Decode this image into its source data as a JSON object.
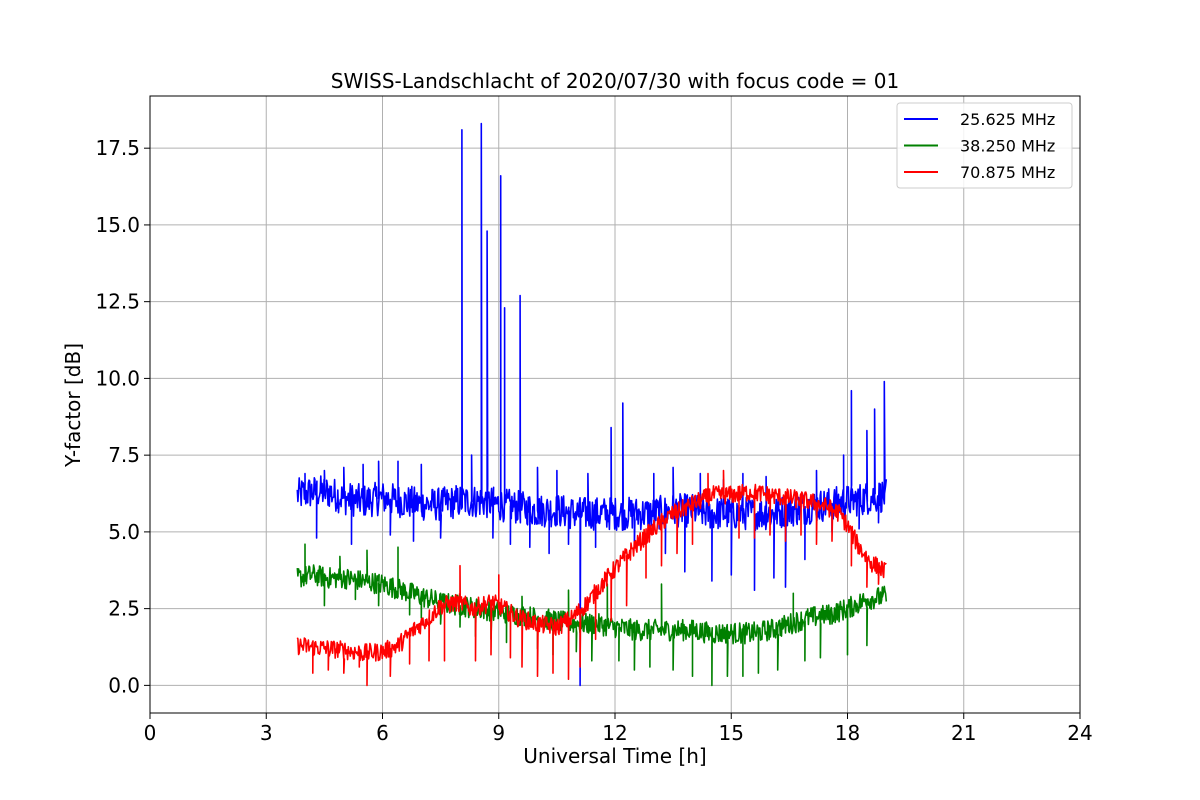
{
  "chart_data": {
    "type": "line",
    "title": "SWISS-Landschlacht of 2020/07/30 with focus code = 01",
    "xlabel": "Universal Time [h]",
    "ylabel": "Y-factor [dB]",
    "xlim": [
      0,
      24
    ],
    "ylim": [
      -0.9,
      19.2
    ],
    "xticks": [
      0,
      3,
      6,
      9,
      12,
      15,
      18,
      21,
      24
    ],
    "xtick_labels": [
      "0",
      "3",
      "6",
      "9",
      "12",
      "15",
      "18",
      "21",
      "24"
    ],
    "yticks": [
      0,
      2.5,
      5,
      7.5,
      10,
      12.5,
      15,
      17.5
    ],
    "ytick_labels": [
      "0.0",
      "2.5",
      "5.0",
      "7.5",
      "10.0",
      "12.5",
      "15.0",
      "17.5"
    ],
    "grid": true,
    "legend_position": "top-right",
    "series": [
      {
        "name": "25.625 MHz",
        "color": "#0000ff",
        "points": [
          [
            3.8,
            6.2
          ],
          [
            4.2,
            6.3
          ],
          [
            4.6,
            6.3
          ],
          [
            5.0,
            6.1
          ],
          [
            5.5,
            6.0
          ],
          [
            6.0,
            6.1
          ],
          [
            6.5,
            6.0
          ],
          [
            7.0,
            5.9
          ],
          [
            7.5,
            5.9
          ],
          [
            8.0,
            6.0
          ],
          [
            8.3,
            6.0
          ],
          [
            8.6,
            6.0
          ],
          [
            9.0,
            5.9
          ],
          [
            9.5,
            5.8
          ],
          [
            10.0,
            5.7
          ],
          [
            10.5,
            5.7
          ],
          [
            11.0,
            5.6
          ],
          [
            11.5,
            5.6
          ],
          [
            12.0,
            5.6
          ],
          [
            12.5,
            5.6
          ],
          [
            13.0,
            5.6
          ],
          [
            13.5,
            5.7
          ],
          [
            14.0,
            5.7
          ],
          [
            14.5,
            5.6
          ],
          [
            15.0,
            5.6
          ],
          [
            15.5,
            5.6
          ],
          [
            16.0,
            5.6
          ],
          [
            16.5,
            5.7
          ],
          [
            17.0,
            5.8
          ],
          [
            17.5,
            5.9
          ],
          [
            18.0,
            6.0
          ],
          [
            18.5,
            6.1
          ],
          [
            19.0,
            6.2
          ]
        ],
        "spikes": [
          [
            4.0,
            6.9
          ],
          [
            4.3,
            4.8
          ],
          [
            4.5,
            7.0
          ],
          [
            5.0,
            7.1
          ],
          [
            5.2,
            4.6
          ],
          [
            5.5,
            7.2
          ],
          [
            5.9,
            7.3
          ],
          [
            6.2,
            4.9
          ],
          [
            6.4,
            7.3
          ],
          [
            6.8,
            4.7
          ],
          [
            7.0,
            7.2
          ],
          [
            7.5,
            4.8
          ],
          [
            7.9,
            6.5
          ],
          [
            8.05,
            18.1
          ],
          [
            8.3,
            7.5
          ],
          [
            8.55,
            18.3
          ],
          [
            8.7,
            14.8
          ],
          [
            8.85,
            4.8
          ],
          [
            9.05,
            16.6
          ],
          [
            9.15,
            12.3
          ],
          [
            9.3,
            4.6
          ],
          [
            9.55,
            12.7
          ],
          [
            9.8,
            4.5
          ],
          [
            10.0,
            7.1
          ],
          [
            10.3,
            4.3
          ],
          [
            10.5,
            7.0
          ],
          [
            10.8,
            4.6
          ],
          [
            11.1,
            0.0
          ],
          [
            11.3,
            6.9
          ],
          [
            11.5,
            4.5
          ],
          [
            11.9,
            8.4
          ],
          [
            12.2,
            9.2
          ],
          [
            12.5,
            4.6
          ],
          [
            13.0,
            6.9
          ],
          [
            13.3,
            4.3
          ],
          [
            13.5,
            7.1
          ],
          [
            13.8,
            3.7
          ],
          [
            14.2,
            6.9
          ],
          [
            14.5,
            3.4
          ],
          [
            14.8,
            6.7
          ],
          [
            15.0,
            3.6
          ],
          [
            15.3,
            6.9
          ],
          [
            15.6,
            3.1
          ],
          [
            15.9,
            6.8
          ],
          [
            16.1,
            3.5
          ],
          [
            16.4,
            3.2
          ],
          [
            16.7,
            5.7
          ],
          [
            16.9,
            4.1
          ],
          [
            17.2,
            7.0
          ],
          [
            17.6,
            5.0
          ],
          [
            17.9,
            7.5
          ],
          [
            18.1,
            9.6
          ],
          [
            18.3,
            5.1
          ],
          [
            18.5,
            8.3
          ],
          [
            18.7,
            9.0
          ],
          [
            18.8,
            5.3
          ],
          [
            18.95,
            9.9
          ]
        ]
      },
      {
        "name": "38.250 MHz",
        "color": "#008000",
        "points": [
          [
            3.8,
            3.5
          ],
          [
            4.2,
            3.6
          ],
          [
            4.6,
            3.5
          ],
          [
            5.0,
            3.5
          ],
          [
            5.5,
            3.4
          ],
          [
            6.0,
            3.3
          ],
          [
            6.5,
            3.1
          ],
          [
            7.0,
            2.9
          ],
          [
            7.5,
            2.7
          ],
          [
            8.0,
            2.6
          ],
          [
            8.5,
            2.5
          ],
          [
            9.0,
            2.4
          ],
          [
            9.5,
            2.3
          ],
          [
            10.0,
            2.2
          ],
          [
            10.5,
            2.1
          ],
          [
            11.0,
            2.0
          ],
          [
            11.5,
            2.0
          ],
          [
            12.0,
            1.9
          ],
          [
            12.5,
            1.8
          ],
          [
            13.0,
            1.8
          ],
          [
            13.5,
            1.8
          ],
          [
            14.0,
            1.8
          ],
          [
            14.5,
            1.7
          ],
          [
            15.0,
            1.7
          ],
          [
            15.5,
            1.7
          ],
          [
            16.0,
            1.8
          ],
          [
            16.5,
            2.0
          ],
          [
            17.0,
            2.2
          ],
          [
            17.5,
            2.3
          ],
          [
            18.0,
            2.5
          ],
          [
            18.5,
            2.8
          ],
          [
            19.0,
            2.9
          ]
        ],
        "spikes": [
          [
            4.0,
            4.6
          ],
          [
            4.5,
            2.6
          ],
          [
            4.9,
            4.2
          ],
          [
            5.3,
            2.8
          ],
          [
            5.6,
            4.4
          ],
          [
            5.9,
            2.6
          ],
          [
            6.4,
            4.5
          ],
          [
            6.7,
            2.3
          ],
          [
            7.0,
            2.2
          ],
          [
            7.5,
            2.0
          ],
          [
            8.0,
            1.9
          ],
          [
            8.4,
            1.6
          ],
          [
            8.8,
            1.5
          ],
          [
            9.2,
            1.4
          ],
          [
            9.6,
            2.9
          ],
          [
            10.0,
            1.2
          ],
          [
            10.4,
            1.0
          ],
          [
            10.8,
            3.1
          ],
          [
            11.0,
            1.1
          ],
          [
            11.4,
            0.8
          ],
          [
            11.8,
            3.3
          ],
          [
            12.1,
            0.8
          ],
          [
            12.5,
            0.5
          ],
          [
            12.9,
            0.6
          ],
          [
            13.2,
            3.3
          ],
          [
            13.5,
            0.5
          ],
          [
            14.0,
            0.3
          ],
          [
            14.5,
            0.0
          ],
          [
            14.9,
            0.3
          ],
          [
            15.3,
            0.3
          ],
          [
            15.7,
            0.4
          ],
          [
            16.2,
            0.5
          ],
          [
            16.6,
            3.0
          ],
          [
            16.9,
            0.8
          ],
          [
            17.3,
            0.9
          ],
          [
            17.6,
            2.0
          ],
          [
            18.0,
            1.0
          ],
          [
            18.5,
            1.3
          ],
          [
            18.9,
            3.2
          ]
        ]
      },
      {
        "name": "70.875 MHz",
        "color": "#ff0000",
        "points": [
          [
            3.8,
            1.3
          ],
          [
            4.2,
            1.25
          ],
          [
            4.6,
            1.2
          ],
          [
            5.0,
            1.15
          ],
          [
            5.5,
            1.05
          ],
          [
            6.0,
            1.1
          ],
          [
            6.4,
            1.3
          ],
          [
            6.8,
            1.8
          ],
          [
            7.2,
            2.2
          ],
          [
            7.5,
            2.6
          ],
          [
            8.0,
            2.7
          ],
          [
            8.3,
            2.5
          ],
          [
            8.8,
            2.7
          ],
          [
            9.0,
            2.6
          ],
          [
            9.5,
            2.2
          ],
          [
            10.0,
            2.0
          ],
          [
            10.5,
            1.9
          ],
          [
            10.9,
            2.2
          ],
          [
            11.3,
            2.7
          ],
          [
            11.6,
            3.2
          ],
          [
            12.0,
            3.8
          ],
          [
            12.5,
            4.5
          ],
          [
            13.0,
            5.1
          ],
          [
            13.5,
            5.6
          ],
          [
            14.0,
            5.9
          ],
          [
            14.5,
            6.2
          ],
          [
            15.0,
            6.2
          ],
          [
            15.5,
            6.3
          ],
          [
            16.0,
            6.2
          ],
          [
            16.5,
            6.1
          ],
          [
            17.0,
            6.0
          ],
          [
            17.5,
            5.8
          ],
          [
            17.8,
            5.6
          ],
          [
            18.0,
            5.2
          ],
          [
            18.3,
            4.5
          ],
          [
            18.6,
            4.0
          ],
          [
            19.0,
            3.7
          ]
        ],
        "spikes": [
          [
            4.2,
            0.4
          ],
          [
            4.6,
            0.5
          ],
          [
            5.0,
            0.4
          ],
          [
            5.4,
            0.6
          ],
          [
            5.6,
            0.0
          ],
          [
            6.2,
            0.3
          ],
          [
            6.7,
            0.7
          ],
          [
            7.2,
            0.8
          ],
          [
            7.6,
            0.8
          ],
          [
            8.0,
            3.9
          ],
          [
            8.4,
            0.8
          ],
          [
            8.8,
            1.0
          ],
          [
            9.0,
            3.6
          ],
          [
            9.3,
            0.9
          ],
          [
            9.6,
            0.6
          ],
          [
            10.0,
            0.3
          ],
          [
            10.4,
            0.4
          ],
          [
            10.8,
            0.2
          ],
          [
            11.1,
            0.6
          ],
          [
            11.5,
            1.5
          ],
          [
            11.9,
            2.1
          ],
          [
            12.3,
            2.6
          ],
          [
            12.8,
            3.5
          ],
          [
            13.2,
            3.9
          ],
          [
            13.6,
            4.3
          ],
          [
            14.0,
            4.6
          ],
          [
            14.4,
            6.9
          ],
          [
            14.8,
            7.0
          ],
          [
            15.2,
            4.8
          ],
          [
            15.6,
            4.8
          ],
          [
            16.0,
            4.9
          ],
          [
            16.4,
            4.7
          ],
          [
            16.8,
            4.9
          ],
          [
            17.2,
            4.6
          ],
          [
            17.6,
            4.7
          ],
          [
            18.1,
            3.9
          ],
          [
            18.5,
            3.2
          ],
          [
            18.8,
            3.3
          ]
        ]
      }
    ]
  }
}
